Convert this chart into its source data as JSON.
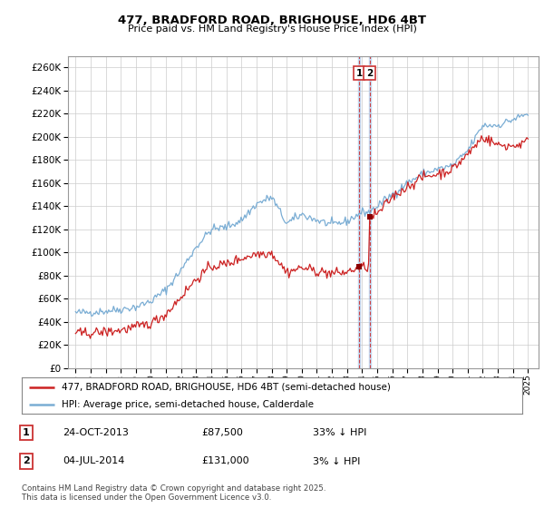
{
  "title": "477, BRADFORD ROAD, BRIGHOUSE, HD6 4BT",
  "subtitle": "Price paid vs. HM Land Registry's House Price Index (HPI)",
  "legend_line1": "477, BRADFORD ROAD, BRIGHOUSE, HD6 4BT (semi-detached house)",
  "legend_line2": "HPI: Average price, semi-detached house, Calderdale",
  "transactions": [
    {
      "num": 1,
      "date": "24-OCT-2013",
      "price": "£87,500",
      "hpi_diff": "33% ↓ HPI",
      "x_year": 2013.81
    },
    {
      "num": 2,
      "date": "04-JUL-2014",
      "price": "£131,000",
      "hpi_diff": "3% ↓ HPI",
      "x_year": 2014.5
    }
  ],
  "copyright": "Contains HM Land Registry data © Crown copyright and database right 2025.\nThis data is licensed under the Open Government Licence v3.0.",
  "hpi_color": "#7aadd4",
  "price_color": "#cc2222",
  "marker_color": "#8b0000",
  "vline_red_color": "#cc3333",
  "vline_blue_color": "#aaccee",
  "ylim": [
    0,
    270000
  ],
  "ytick_step": 20000,
  "xmin": 1994.5,
  "xmax": 2025.7,
  "hpi_anchors": [
    [
      1995.0,
      48000
    ],
    [
      1996.0,
      48500
    ],
    [
      1997.0,
      49500
    ],
    [
      1998.0,
      51000
    ],
    [
      1999.0,
      53000
    ],
    [
      2000.0,
      58000
    ],
    [
      2001.0,
      68000
    ],
    [
      2002.0,
      85000
    ],
    [
      2003.0,
      105000
    ],
    [
      2004.0,
      120000
    ],
    [
      2005.0,
      122000
    ],
    [
      2006.0,
      128000
    ],
    [
      2007.0,
      142000
    ],
    [
      2008.0,
      148000
    ],
    [
      2009.0,
      125000
    ],
    [
      2010.0,
      133000
    ],
    [
      2011.0,
      128000
    ],
    [
      2012.0,
      124000
    ],
    [
      2013.0,
      127000
    ],
    [
      2013.5,
      131000
    ],
    [
      2014.0,
      135000
    ],
    [
      2014.5,
      135000
    ],
    [
      2015.0,
      140000
    ],
    [
      2016.0,
      150000
    ],
    [
      2017.0,
      160000
    ],
    [
      2018.0,
      168000
    ],
    [
      2019.0,
      172000
    ],
    [
      2020.0,
      175000
    ],
    [
      2021.0,
      188000
    ],
    [
      2022.0,
      210000
    ],
    [
      2023.0,
      210000
    ],
    [
      2024.0,
      215000
    ],
    [
      2025.0,
      220000
    ]
  ],
  "price_anchors": [
    [
      1995.0,
      30000
    ],
    [
      1996.0,
      30500
    ],
    [
      1997.0,
      31500
    ],
    [
      1998.0,
      33000
    ],
    [
      1999.0,
      35500
    ],
    [
      2000.0,
      39000
    ],
    [
      2001.0,
      47000
    ],
    [
      2002.0,
      62000
    ],
    [
      2003.0,
      77000
    ],
    [
      2004.0,
      88000
    ],
    [
      2005.0,
      90000
    ],
    [
      2006.0,
      95000
    ],
    [
      2007.0,
      99000
    ],
    [
      2008.0,
      100000
    ],
    [
      2009.0,
      83000
    ],
    [
      2010.0,
      87000
    ],
    [
      2011.0,
      84000
    ],
    [
      2012.0,
      82000
    ],
    [
      2013.0,
      83000
    ],
    [
      2013.81,
      87500
    ],
    [
      2013.82,
      87500
    ],
    [
      2014.49,
      87500
    ],
    [
      2014.5,
      131000
    ],
    [
      2015.0,
      133000
    ],
    [
      2016.0,
      148000
    ],
    [
      2017.0,
      157000
    ],
    [
      2018.0,
      165000
    ],
    [
      2019.0,
      168000
    ],
    [
      2020.0,
      172000
    ],
    [
      2021.0,
      185000
    ],
    [
      2022.0,
      200000
    ],
    [
      2023.0,
      193000
    ],
    [
      2024.0,
      192000
    ],
    [
      2025.0,
      196000
    ]
  ],
  "noise_seed": 42,
  "hpi_noise": 1800,
  "price_noise": 2200,
  "n_points": 370
}
